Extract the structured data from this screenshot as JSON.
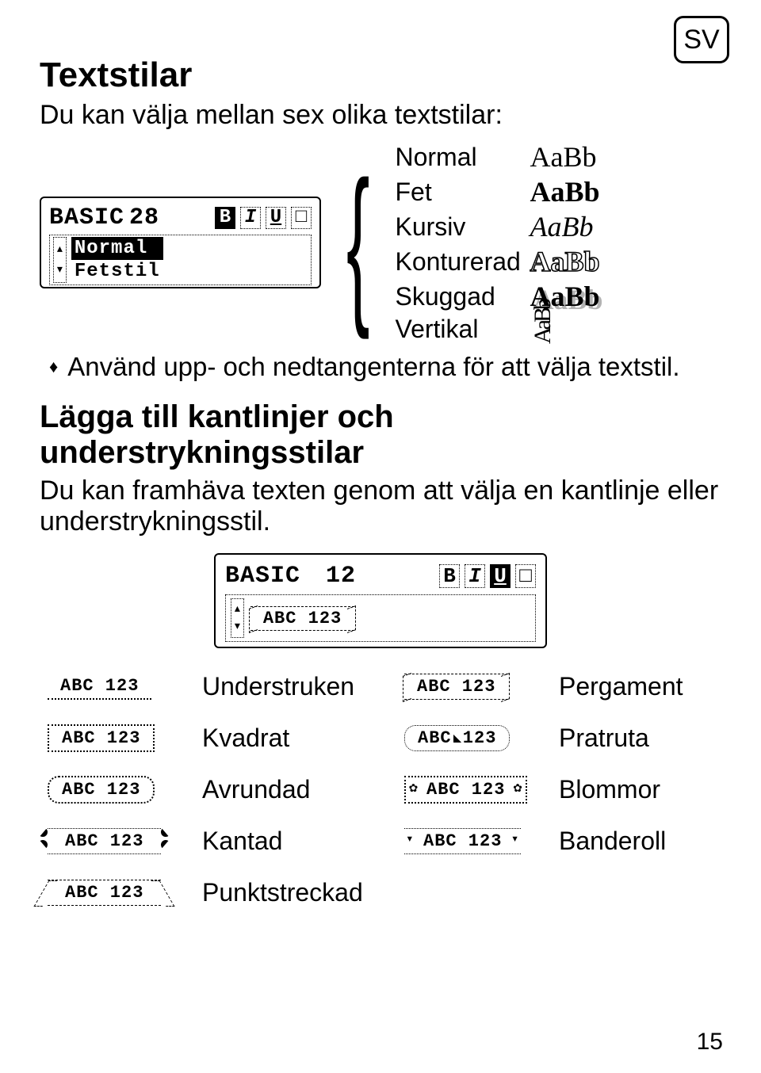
{
  "lang_badge": "SV",
  "page_number": "15",
  "section1": {
    "heading": "Textstilar",
    "intro": "Du kan välja mellan sex olika textstilar:",
    "bullet": "Använd upp- och nedtangenterna för att välja textstil."
  },
  "lcd1": {
    "line1_labels": [
      "BASIC",
      "28"
    ],
    "line1_glyphs": [
      "B",
      "I",
      "U",
      "□"
    ],
    "option_selected": "Normal",
    "option_unselected": "Fetstil"
  },
  "styles": [
    {
      "name": "Normal",
      "sample": "AaBb",
      "css": "s-normal"
    },
    {
      "name": "Fet",
      "sample": "AaBb",
      "css": "s-bold"
    },
    {
      "name": "Kursiv",
      "sample": "AaBb",
      "css": "s-italic"
    },
    {
      "name": "Konturerad",
      "sample": "AaBb",
      "css": "s-outline"
    },
    {
      "name": "Skuggad",
      "sample": "AaBb",
      "css": "s-shadow"
    },
    {
      "name": "Vertikal",
      "sample": "AaBb",
      "css": "s-vertical"
    }
  ],
  "section2": {
    "heading": "Lägga till kantlinjer och understrykningsstilar",
    "intro": "Du kan framhäva texten genom att välja en kantlinje eller understrykningsstil."
  },
  "lcd2": {
    "line1_labels": [
      "BASIC",
      "12"
    ],
    "line1_glyphs": [
      "B",
      "I",
      "U",
      "□"
    ],
    "preview": "ABC 123"
  },
  "border_grid": {
    "sample_text": "ABC 123",
    "rows": [
      {
        "left_css": "sw-under",
        "left_label": "Understruken",
        "right_css": "edge-parchment",
        "right_label": "Pergament"
      },
      {
        "left_css": "sw-square",
        "left_label": "Kvadrat",
        "right_css": "sw-speech",
        "right_label": "Pratruta"
      },
      {
        "left_css": "sw-rounded",
        "left_label": "Avrundad",
        "right_css": "sw-flowers",
        "right_label": "Blommor"
      },
      {
        "left_css": "sw-edged",
        "left_label": "Kantad",
        "right_css": "sw-banner",
        "right_label": "Banderoll"
      },
      {
        "left_css": "sw-dotted",
        "left_label": "Punktstreckad",
        "right_css": "",
        "right_label": ""
      }
    ]
  }
}
